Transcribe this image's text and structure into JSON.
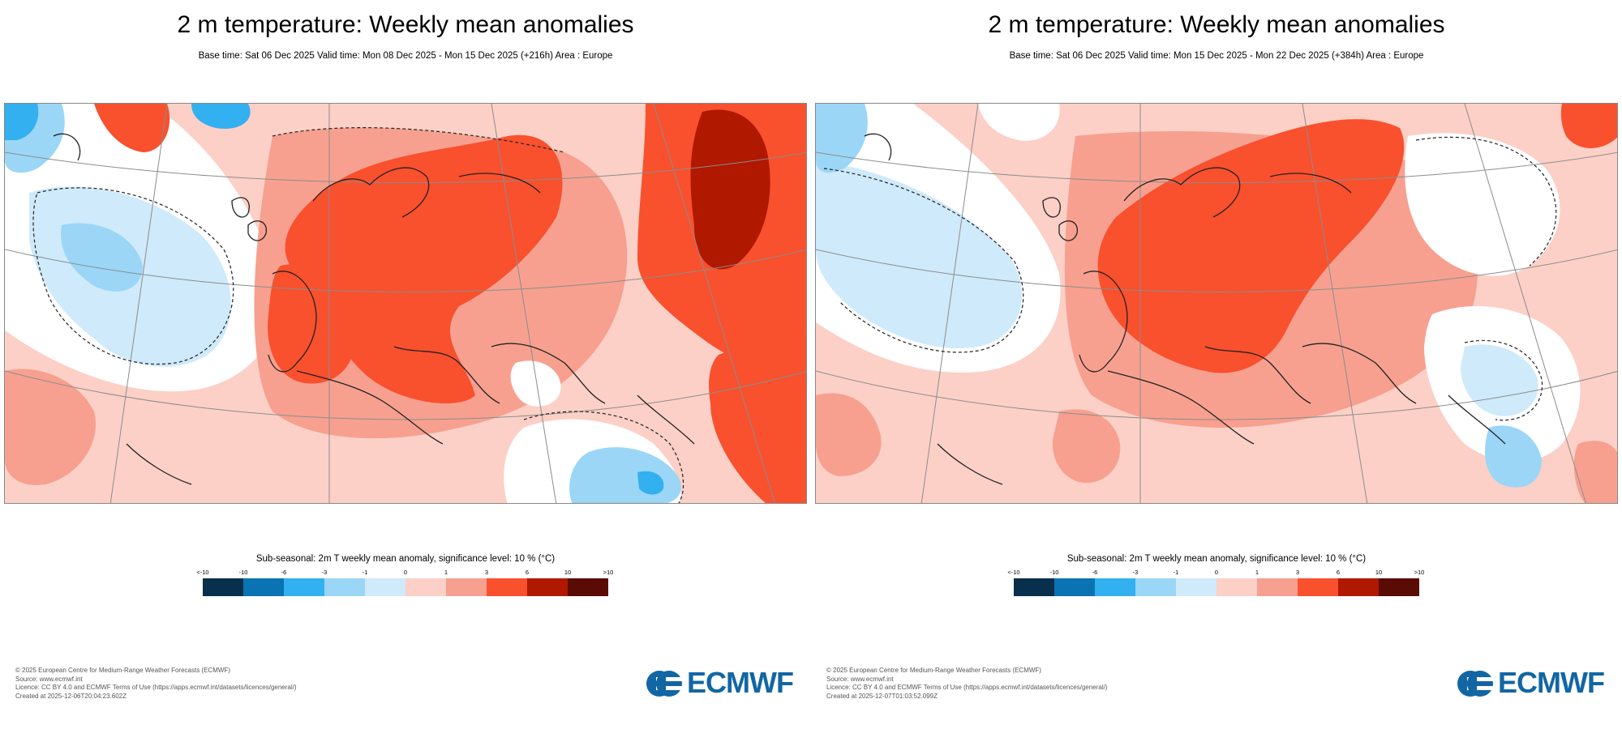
{
  "panels": [
    {
      "title": "2 m temperature: Weekly mean anomalies",
      "subtitle": "Base time: Sat 06 Dec 2025 Valid time: Mon 08 Dec 2025 - Mon 15 Dec 2025 (+216h) Area : Europe",
      "legend_title": "Sub-seasonal: 2m T weekly mean anomaly, significance level: 10 % (°C)",
      "footer": [
        "© 2025 European Centre for Medium-Range Weather Forecasts (ECMWF)",
        "Source: www.ecmwf.int",
        "Licence: CC BY 4.0 and ECMWF Terms of Use (https://apps.ecmwf.int/datasets/licences/general/)",
        "Created at 2025-12-06T20:04:23.602Z"
      ],
      "logo": "ECMWF"
    },
    {
      "title": "2 m temperature: Weekly mean anomalies",
      "subtitle": "Base time: Sat 06 Dec 2025 Valid time: Mon 15 Dec 2025 - Mon 22 Dec 2025 (+384h) Area : Europe",
      "legend_title": "Sub-seasonal: 2m T weekly mean anomaly, significance level: 10 % (°C)",
      "footer": [
        "© 2025 European Centre for Medium-Range Weather Forecasts (ECMWF)",
        "Source: www.ecmwf.int",
        "Licence: CC BY 4.0 and ECMWF Terms of Use (https://apps.ecmwf.int/datasets/licences/general/)",
        "Created at 2025-12-07T01:03:52.099Z"
      ],
      "logo": "ECMWF"
    }
  ],
  "legend": {
    "ticks": [
      "<-10",
      "-10",
      "-6",
      "-3",
      "-1",
      "0",
      "1",
      "3",
      "6",
      "10",
      ">10"
    ],
    "colors": [
      "#082f4b",
      "#0a73b3",
      "#33b0f0",
      "#9bd6f7",
      "#cfeafb",
      "#fcd0c6",
      "#f7a090",
      "#f9502e",
      "#b01800",
      "#5a0c04"
    ]
  },
  "map_colors": {
    "very_cold": "#1f8fd6",
    "cold": "#33b0f0",
    "cool": "#9bd6f7",
    "slight_cool": "#cfeafb",
    "neutral": "#ffffff",
    "slight_warm": "#fcd0c6",
    "warm": "#f7a090",
    "hot": "#f9502e",
    "very_hot": "#b01800",
    "coast": "#222222",
    "grid": "#8c8c8c"
  }
}
